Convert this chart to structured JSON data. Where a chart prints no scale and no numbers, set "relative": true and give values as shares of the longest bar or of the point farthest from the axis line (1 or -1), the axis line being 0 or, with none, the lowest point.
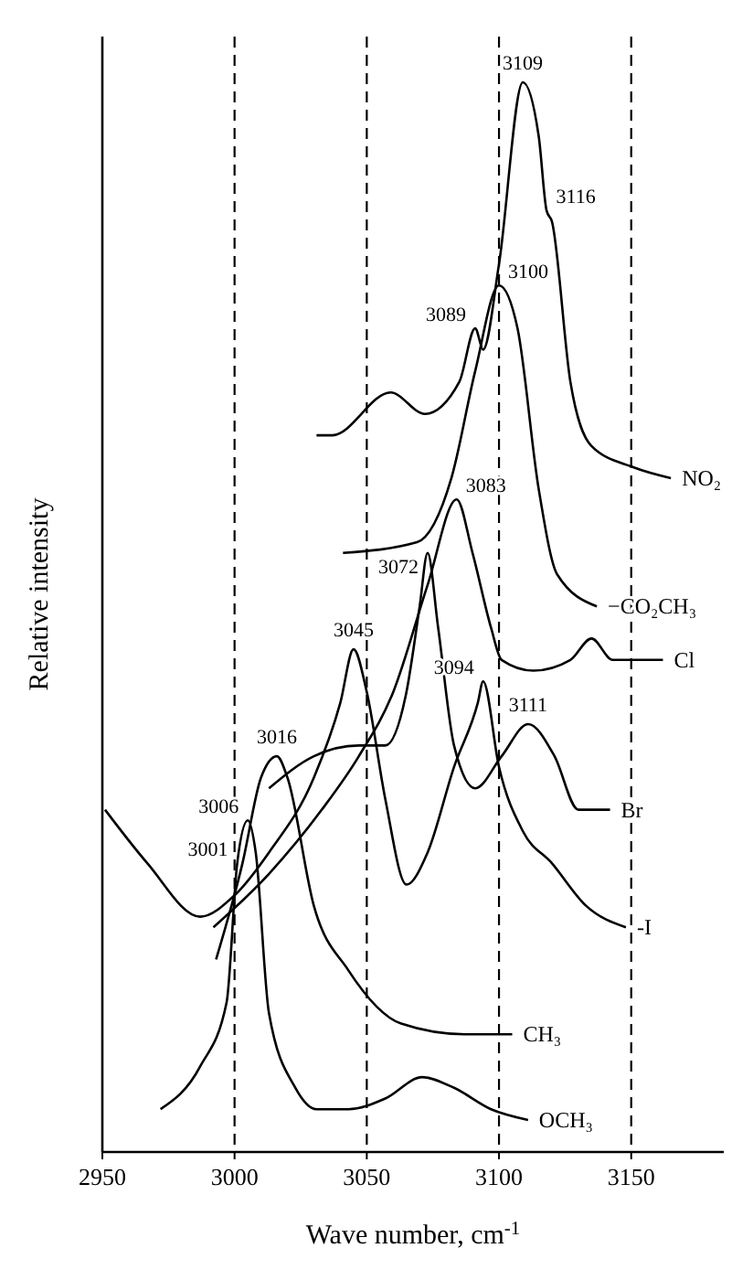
{
  "chart_data": {
    "type": "line",
    "relative": true,
    "xlabel": "Wave number, cm$^{-1}$",
    "ylabel": "Relative intensity",
    "xlim": [
      2950,
      3185
    ],
    "xticks": [
      2950,
      3000,
      3050,
      3100,
      3150
    ],
    "ref_lines": [
      {
        "axis": "x",
        "value": 3000,
        "line_style": "dashed"
      },
      {
        "axis": "x",
        "value": 3050,
        "line_style": "dashed"
      },
      {
        "axis": "x",
        "value": 3100,
        "line_style": "dashed"
      },
      {
        "axis": "x",
        "value": 3150,
        "line_style": "dashed"
      }
    ],
    "series": [
      {
        "name": "NO₂",
        "color": "#000000",
        "x": [
          3031,
          3037,
          3059,
          3072,
          3085,
          3091,
          3094,
          3100,
          3109,
          3115,
          3118,
          3120,
          3127,
          3135,
          3151,
          3165
        ],
        "values": [
          0.67,
          0.67,
          0.71,
          0.69,
          0.72,
          0.77,
          0.75,
          0.83,
          1.0,
          0.95,
          0.88,
          0.87,
          0.72,
          0.66,
          0.64,
          0.63
        ]
      },
      {
        "name": "−CO₂CH₃",
        "color": "#000000",
        "x": [
          3041,
          3069,
          3082,
          3091,
          3100,
          3107,
          3115,
          3122,
          3137
        ],
        "values": [
          0.56,
          0.57,
          0.63,
          0.73,
          0.81,
          0.77,
          0.62,
          0.54,
          0.51
        ]
      },
      {
        "name": "Cl",
        "color": "#000000",
        "x": [
          2992,
          3013,
          3033,
          3047,
          3060,
          3073,
          3084,
          3090,
          3097,
          3101,
          3113,
          3127,
          3135,
          3143,
          3149,
          3162
        ],
        "values": [
          0.21,
          0.26,
          0.32,
          0.37,
          0.43,
          0.53,
          0.61,
          0.56,
          0.49,
          0.46,
          0.45,
          0.46,
          0.48,
          0.46,
          0.46,
          0.46
        ]
      },
      {
        "name": "Br",
        "color": "#000000",
        "x": [
          3013,
          3030,
          3047,
          3057,
          3065,
          3070,
          3073,
          3077,
          3083,
          3091,
          3101,
          3111,
          3121,
          3130,
          3142
        ],
        "values": [
          0.34,
          0.37,
          0.38,
          0.38,
          0.43,
          0.51,
          0.56,
          0.49,
          0.38,
          0.34,
          0.37,
          0.4,
          0.37,
          0.32,
          0.32
        ]
      },
      {
        "name": "-I",
        "color": "#000000",
        "x": [
          2951,
          2967,
          2987,
          3000,
          3013,
          3030,
          3040,
          3045,
          3050,
          3057,
          3065,
          3073,
          3083,
          3092,
          3094,
          3100,
          3109,
          3120,
          3133,
          3148
        ],
        "values": [
          0.32,
          0.27,
          0.22,
          0.24,
          0.28,
          0.35,
          0.42,
          0.47,
          0.43,
          0.33,
          0.25,
          0.28,
          0.36,
          0.42,
          0.44,
          0.36,
          0.3,
          0.27,
          0.23,
          0.21
        ]
      },
      {
        "name": "CH₃",
        "color": "#000000",
        "x": [
          2993,
          3003,
          3010,
          3016,
          3020,
          3030,
          3043,
          3063,
          3087,
          3105
        ],
        "values": [
          0.18,
          0.27,
          0.35,
          0.37,
          0.35,
          0.23,
          0.17,
          0.12,
          0.11,
          0.11
        ]
      },
      {
        "name": "OCH₃",
        "color": "#000000",
        "x": [
          2972,
          2987,
          2997,
          3001,
          3005,
          3008,
          3013,
          3023,
          3031,
          3043,
          3057,
          3071,
          3083,
          3097,
          3111
        ],
        "values": [
          0.04,
          0.08,
          0.14,
          0.27,
          0.31,
          0.28,
          0.13,
          0.06,
          0.04,
          0.04,
          0.05,
          0.07,
          0.06,
          0.04,
          0.03
        ]
      }
    ],
    "annotations": [
      {
        "text": "3109",
        "x": 3109,
        "y": 1.0
      },
      {
        "text": "3116",
        "x": 3118,
        "y": 0.88
      },
      {
        "text": "3100",
        "x": 3100,
        "y": 0.81
      },
      {
        "text": "3089",
        "x": 3091,
        "y": 0.77
      },
      {
        "text": "3083",
        "x": 3084,
        "y": 0.61
      },
      {
        "text": "3072",
        "x": 3073,
        "y": 0.56
      },
      {
        "text": "3045",
        "x": 3045,
        "y": 0.47
      },
      {
        "text": "3094",
        "x": 3094,
        "y": 0.44
      },
      {
        "text": "3111",
        "x": 3111,
        "y": 0.4
      },
      {
        "text": "3016",
        "x": 3016,
        "y": 0.37
      },
      {
        "text": "3006",
        "x": 3005,
        "y": 0.31
      },
      {
        "text": "3001",
        "x": 3001,
        "y": 0.27
      }
    ]
  }
}
